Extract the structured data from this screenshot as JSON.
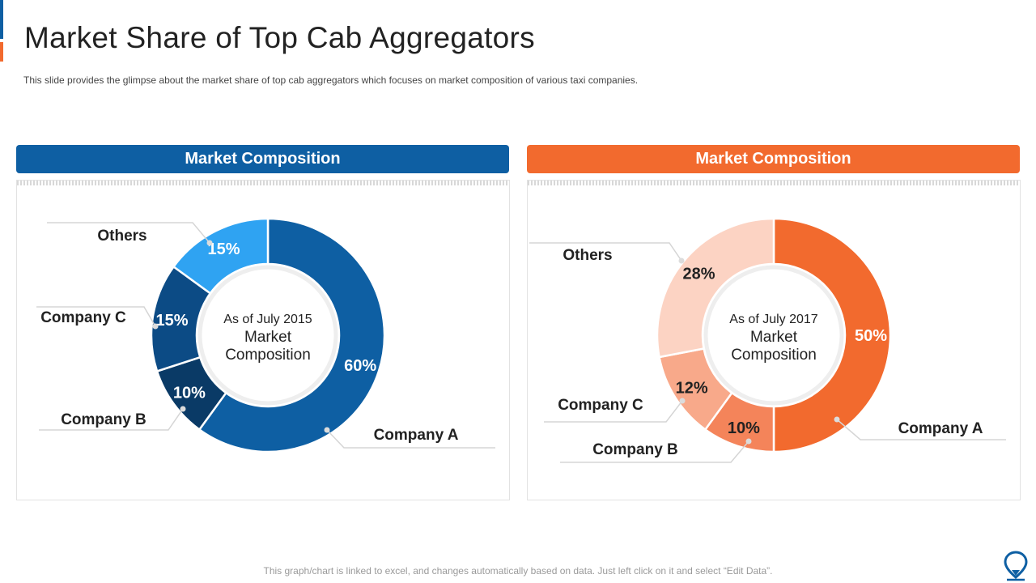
{
  "title": "Market Share of Top Cab Aggregators",
  "subtitle": "This slide provides  the glimpse about the market share of top cab aggregators which focuses on market composition of various taxi companies.",
  "footer": "This graph/chart is linked to excel, and changes automatically based on data. Just left click on it and select “Edit Data”.",
  "colors": {
    "blue_header": "#0e5fa3",
    "orange_header": "#f26a2e"
  },
  "icons": {
    "logo": "location-pin-icon"
  },
  "chart_data": [
    {
      "type": "pie",
      "variant": "donut",
      "header": "Market Composition",
      "center_line1": "As of July 2015",
      "center_line2": "Market",
      "center_line3": "Composition",
      "categories": [
        "Company A",
        "Company B",
        "Company C",
        "Others"
      ],
      "values": [
        60,
        10,
        15,
        15
      ],
      "value_labels": [
        "60%",
        "10%",
        "15%",
        "15%"
      ],
      "colors": [
        "#0e5fa3",
        "#0a3a66",
        "#0c4b85",
        "#2fa3f2"
      ],
      "label_colors": [
        "#ffffff",
        "#ffffff",
        "#ffffff",
        "#ffffff"
      ]
    },
    {
      "type": "pie",
      "variant": "donut",
      "header": "Market Composition",
      "center_line1": "As of July 2017",
      "center_line2": "Market",
      "center_line3": "Composition",
      "categories": [
        "Company A",
        "Company B",
        "Company C",
        "Others"
      ],
      "values": [
        50,
        10,
        12,
        28
      ],
      "value_labels": [
        "50%",
        "10%",
        "12%",
        "28%"
      ],
      "colors": [
        "#f26a2e",
        "#f4845a",
        "#f8a98a",
        "#fcd3c3"
      ],
      "label_colors": [
        "#ffffff",
        "#222222",
        "#222222",
        "#222222"
      ]
    }
  ]
}
